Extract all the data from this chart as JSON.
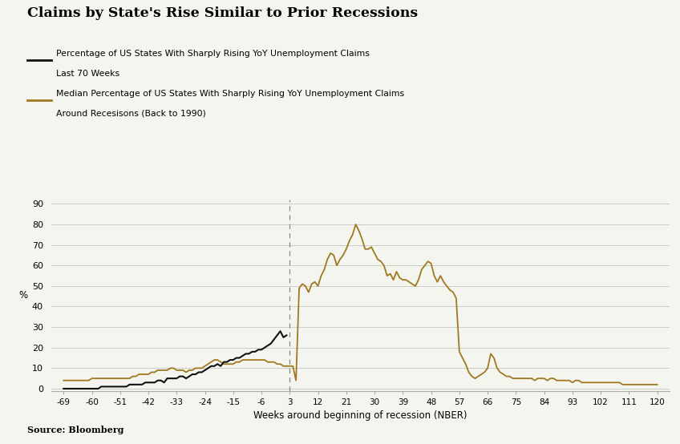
{
  "title": "Claims by State's Rise Similar to Prior Recessions",
  "legend_line1_text": "Percentage of US States With Sharply Rising YoY Unemployment Claims\nLast 70 Weeks",
  "legend_line2_text": "Median Percentage of US States With Sharply Rising YoY Unemployment Claims\nAround Recesisons (Back to 1990)",
  "xlabel": "Weeks around beginning of recession (NBER)",
  "ylabel": "%",
  "source": "Source: Bloomberg",
  "black_color": "#111111",
  "gold_color": "#A07820",
  "bg_color": "#F5F5F0",
  "vline_x": 3,
  "yticks": [
    0,
    10,
    20,
    30,
    40,
    50,
    60,
    70,
    80,
    90
  ],
  "xticks": [
    -69,
    -60,
    -51,
    -42,
    -33,
    -24,
    -15,
    -6,
    3,
    12,
    21,
    30,
    39,
    48,
    57,
    66,
    75,
    84,
    93,
    102,
    111,
    120
  ],
  "xlim": [
    -73,
    124
  ],
  "ylim": [
    -1,
    92
  ],
  "black_x": [
    -69,
    -68,
    -67,
    -66,
    -65,
    -64,
    -63,
    -62,
    -61,
    -60,
    -59,
    -58,
    -57,
    -56,
    -55,
    -54,
    -53,
    -52,
    -51,
    -50,
    -49,
    -48,
    -47,
    -46,
    -45,
    -44,
    -43,
    -42,
    -41,
    -40,
    -39,
    -38,
    -37,
    -36,
    -35,
    -34,
    -33,
    -32,
    -31,
    -30,
    -29,
    -28,
    -27,
    -26,
    -25,
    -24,
    -23,
    -22,
    -21,
    -20,
    -19,
    -18,
    -17,
    -16,
    -15,
    -14,
    -13,
    -12,
    -11,
    -10,
    -9,
    -8,
    -7,
    -6,
    -5,
    -4,
    -3,
    -2,
    -1,
    0,
    1,
    2
  ],
  "black_y": [
    0,
    0,
    0,
    0,
    0,
    0,
    0,
    0,
    0,
    0,
    0,
    0,
    1,
    1,
    1,
    1,
    1,
    1,
    1,
    1,
    1,
    2,
    2,
    2,
    2,
    2,
    3,
    3,
    3,
    3,
    4,
    4,
    3,
    5,
    5,
    5,
    5,
    6,
    6,
    5,
    6,
    7,
    7,
    8,
    8,
    9,
    10,
    11,
    11,
    12,
    11,
    13,
    13,
    14,
    14,
    15,
    15,
    16,
    17,
    17,
    18,
    18,
    19,
    19,
    20,
    21,
    22,
    24,
    26,
    28,
    25,
    26
  ],
  "gold_x": [
    -69,
    -68,
    -67,
    -66,
    -65,
    -64,
    -63,
    -62,
    -61,
    -60,
    -59,
    -58,
    -57,
    -56,
    -55,
    -54,
    -53,
    -52,
    -51,
    -50,
    -49,
    -48,
    -47,
    -46,
    -45,
    -44,
    -43,
    -42,
    -41,
    -40,
    -39,
    -38,
    -37,
    -36,
    -35,
    -34,
    -33,
    -32,
    -31,
    -30,
    -29,
    -28,
    -27,
    -26,
    -25,
    -24,
    -23,
    -22,
    -21,
    -20,
    -19,
    -18,
    -17,
    -16,
    -15,
    -14,
    -13,
    -12,
    -11,
    -10,
    -9,
    -8,
    -7,
    -6,
    -5,
    -4,
    -3,
    -2,
    -1,
    0,
    1,
    2,
    3,
    4,
    5,
    6,
    7,
    8,
    9,
    10,
    11,
    12,
    13,
    14,
    15,
    16,
    17,
    18,
    19,
    20,
    21,
    22,
    23,
    24,
    25,
    26,
    27,
    28,
    29,
    30,
    31,
    32,
    33,
    34,
    35,
    36,
    37,
    38,
    39,
    40,
    41,
    42,
    43,
    44,
    45,
    46,
    47,
    48,
    49,
    50,
    51,
    52,
    53,
    54,
    55,
    56,
    57,
    58,
    59,
    60,
    61,
    62,
    63,
    64,
    65,
    66,
    67,
    68,
    69,
    70,
    71,
    72,
    73,
    74,
    75,
    76,
    77,
    78,
    79,
    80,
    81,
    82,
    83,
    84,
    85,
    86,
    87,
    88,
    89,
    90,
    91,
    92,
    93,
    94,
    95,
    96,
    97,
    98,
    99,
    100,
    101,
    102,
    103,
    104,
    105,
    106,
    107,
    108,
    109,
    110,
    111,
    112,
    113,
    114,
    115,
    116,
    117,
    118,
    119,
    120
  ],
  "gold_y": [
    4,
    4,
    4,
    4,
    4,
    4,
    4,
    4,
    4,
    5,
    5,
    5,
    5,
    5,
    5,
    5,
    5,
    5,
    5,
    5,
    5,
    5,
    6,
    6,
    7,
    7,
    7,
    7,
    8,
    8,
    9,
    9,
    9,
    9,
    10,
    10,
    9,
    9,
    9,
    8,
    9,
    9,
    10,
    10,
    10,
    11,
    12,
    13,
    14,
    14,
    13,
    12,
    12,
    12,
    12,
    13,
    13,
    14,
    14,
    14,
    14,
    14,
    14,
    14,
    14,
    13,
    13,
    13,
    12,
    12,
    11,
    11,
    11,
    11,
    4,
    49,
    51,
    50,
    47,
    51,
    52,
    50,
    55,
    58,
    63,
    66,
    65,
    60,
    63,
    65,
    68,
    72,
    75,
    80,
    77,
    73,
    68,
    68,
    69,
    66,
    63,
    62,
    60,
    55,
    56,
    53,
    57,
    54,
    53,
    53,
    52,
    51,
    50,
    53,
    58,
    60,
    62,
    61,
    55,
    52,
    55,
    52,
    50,
    48,
    47,
    44,
    18,
    15,
    12,
    8,
    6,
    5,
    6,
    7,
    8,
    10,
    17,
    15,
    10,
    8,
    7,
    6,
    6,
    5,
    5,
    5,
    5,
    5,
    5,
    5,
    4,
    5,
    5,
    5,
    4,
    5,
    5,
    4,
    4,
    4,
    4,
    4,
    3,
    4,
    4,
    3,
    3,
    3,
    3,
    3,
    3,
    3,
    3,
    3,
    3,
    3,
    3,
    3,
    2,
    2,
    2,
    2,
    2,
    2,
    2,
    2,
    2,
    2,
    2,
    2
  ]
}
